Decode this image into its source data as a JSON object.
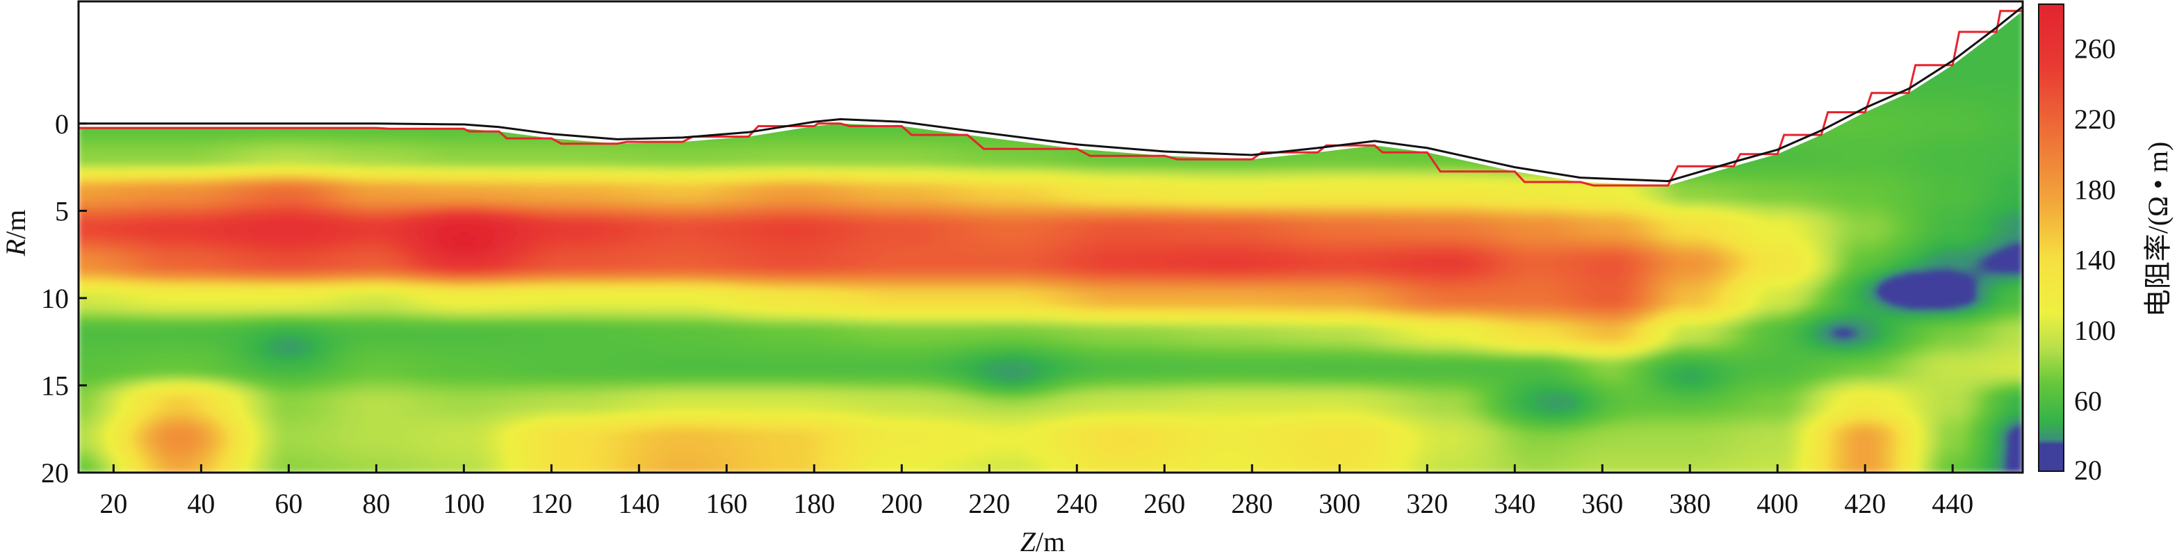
{
  "chart_data": {
    "type": "heatmap",
    "title": "",
    "xlabel": {
      "italic": "Z",
      "unit": "/m"
    },
    "ylabel": {
      "italic": "R",
      "unit": "/m"
    },
    "xlim": [
      12,
      456
    ],
    "ylim": [
      -7,
      20
    ],
    "y_inverted": true,
    "x_ticks": [
      20,
      40,
      60,
      80,
      100,
      120,
      140,
      160,
      180,
      200,
      220,
      240,
      260,
      280,
      300,
      320,
      340,
      360,
      380,
      400,
      420,
      440
    ],
    "y_ticks": [
      0,
      5,
      10,
      15,
      20
    ],
    "colorbar": {
      "label": "电阻率/(Ω • m)",
      "range": [
        20,
        285
      ],
      "ticks": [
        20,
        60,
        100,
        140,
        180,
        220,
        260
      ],
      "colors": [
        {
          "v": 20,
          "c": "#3f3f9c"
        },
        {
          "v": 35,
          "c": "#3f3f9c"
        },
        {
          "v": 38,
          "c": "#3a8f7a"
        },
        {
          "v": 48,
          "c": "#35b24a"
        },
        {
          "v": 70,
          "c": "#66c73a"
        },
        {
          "v": 90,
          "c": "#b8e04a"
        },
        {
          "v": 110,
          "c": "#eef040"
        },
        {
          "v": 140,
          "c": "#f6e040"
        },
        {
          "v": 175,
          "c": "#f2a33a"
        },
        {
          "v": 215,
          "c": "#ee6b36"
        },
        {
          "v": 250,
          "c": "#e83a32"
        },
        {
          "v": 285,
          "c": "#e2242f"
        }
      ]
    },
    "surface_profile": {
      "z": [
        12,
        40,
        60,
        80,
        100,
        108,
        120,
        135,
        150,
        165,
        180,
        186,
        200,
        215,
        240,
        260,
        280,
        295,
        308,
        320,
        340,
        355,
        375,
        390,
        400,
        410,
        420,
        430,
        440,
        450,
        456
      ],
      "r": [
        0.0,
        0.0,
        0.0,
        0.0,
        0.05,
        0.2,
        0.6,
        0.9,
        0.8,
        0.5,
        -0.1,
        -0.25,
        -0.1,
        0.4,
        1.2,
        1.6,
        1.8,
        1.4,
        1.0,
        1.4,
        2.5,
        3.1,
        3.3,
        2.2,
        1.5,
        0.4,
        -0.9,
        -2.0,
        -3.6,
        -5.5,
        -6.7
      ]
    },
    "values_grid": {
      "z": [
        12,
        35,
        60,
        80,
        100,
        125,
        150,
        175,
        200,
        225,
        250,
        275,
        300,
        325,
        345,
        362,
        380,
        400,
        420,
        440,
        456
      ],
      "r": [
        -7,
        -3,
        0,
        2,
        4,
        6,
        8,
        10,
        12,
        14,
        16,
        18,
        20
      ],
      "values": [
        [
          55,
          55,
          55,
          55,
          55,
          55,
          55,
          55,
          55,
          55,
          55,
          55,
          55,
          55,
          55,
          55,
          55,
          55,
          55,
          55,
          55
        ],
        [
          55,
          55,
          55,
          55,
          55,
          55,
          55,
          55,
          55,
          55,
          55,
          55,
          55,
          55,
          55,
          55,
          55,
          55,
          55,
          55,
          55
        ],
        [
          65,
          65,
          65,
          65,
          65,
          65,
          65,
          65,
          65,
          65,
          65,
          65,
          65,
          65,
          65,
          65,
          65,
          65,
          65,
          62,
          58
        ],
        [
          80,
          80,
          90,
          85,
          80,
          80,
          78,
          80,
          80,
          75,
          70,
          70,
          72,
          70,
          65,
          60,
          58,
          60,
          62,
          58,
          55
        ],
        [
          180,
          190,
          215,
          180,
          175,
          170,
          160,
          180,
          165,
          150,
          130,
          120,
          125,
          125,
          120,
          115,
          80,
          75,
          70,
          60,
          50
        ],
        [
          240,
          250,
          265,
          250,
          275,
          250,
          235,
          245,
          230,
          215,
          230,
          225,
          210,
          205,
          190,
          175,
          140,
          110,
          80,
          55,
          40
        ],
        [
          190,
          220,
          235,
          225,
          250,
          230,
          225,
          235,
          225,
          225,
          245,
          250,
          240,
          250,
          220,
          230,
          185,
          130,
          70,
          40,
          30
        ],
        [
          100,
          110,
          110,
          100,
          115,
          110,
          110,
          130,
          145,
          145,
          170,
          170,
          175,
          210,
          210,
          225,
          160,
          100,
          55,
          30,
          60
        ],
        [
          60,
          60,
          60,
          60,
          60,
          62,
          65,
          70,
          75,
          75,
          80,
          85,
          90,
          110,
          140,
          160,
          95,
          65,
          55,
          75,
          90
        ],
        [
          65,
          70,
          60,
          70,
          65,
          62,
          60,
          60,
          60,
          50,
          60,
          62,
          60,
          60,
          60,
          80,
          65,
          60,
          75,
          95,
          100
        ],
        [
          80,
          150,
          80,
          90,
          85,
          90,
          100,
          100,
          95,
          90,
          95,
          100,
          100,
          85,
          55,
          70,
          70,
          75,
          120,
          90,
          50
        ],
        [
          90,
          190,
          85,
          90,
          95,
          140,
          160,
          150,
          120,
          110,
          140,
          120,
          135,
          100,
          80,
          85,
          85,
          90,
          175,
          80,
          30
        ],
        [
          70,
          170,
          80,
          85,
          90,
          140,
          165,
          150,
          110,
          100,
          130,
          115,
          130,
          95,
          85,
          90,
          90,
          95,
          175,
          70,
          30
        ]
      ],
      "note_blobs": [
        {
          "z": 100,
          "r": 6.7,
          "v": 285
        },
        {
          "z": 430,
          "r": 9.5,
          "v": 22
        },
        {
          "z": 60,
          "r": 12.8,
          "v": 42
        },
        {
          "z": 225,
          "r": 14.3,
          "v": 42
        },
        {
          "z": 350,
          "r": 16.0,
          "v": 42
        },
        {
          "z": 415,
          "r": 12.0,
          "v": 35
        },
        {
          "z": 380,
          "r": 14.5,
          "v": 45
        }
      ]
    }
  }
}
